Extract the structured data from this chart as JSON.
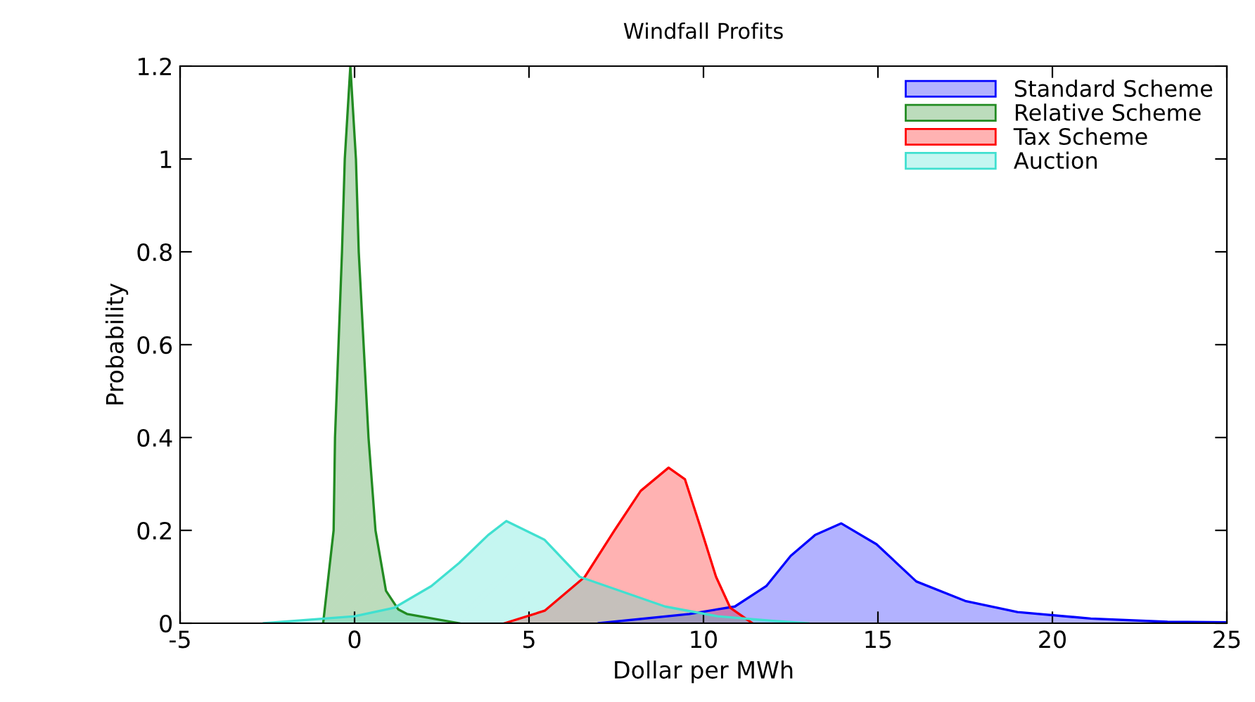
{
  "chart_data": {
    "type": "area",
    "title": "Windfall Profits",
    "xlabel": "Dollar per MWh",
    "ylabel": "Probability",
    "xlim": [
      -5,
      25
    ],
    "xticks": [
      -5,
      0,
      5,
      10,
      15,
      20,
      25
    ],
    "ylim": [
      0,
      1.2
    ],
    "yticks": [
      0,
      0.2,
      0.4,
      0.6,
      0.8,
      1,
      1.2
    ],
    "grid": false,
    "legend": "top right",
    "series": [
      {
        "name": "Standard Scheme",
        "color": "#0000ff",
        "x": [
          7.0,
          9.6,
          10.9,
          11.8,
          12.5,
          13.2,
          13.95,
          14.96,
          16.1,
          17.5,
          19.0,
          21.1,
          23.3,
          25
        ],
        "values": [
          0,
          0.02,
          0.036,
          0.08,
          0.145,
          0.19,
          0.215,
          0.17,
          0.09,
          0.048,
          0.024,
          0.01,
          0.003,
          0.002
        ]
      },
      {
        "name": "Relative Scheme",
        "color": "#228b22",
        "x": [
          -0.9,
          -0.6,
          -0.56,
          -0.36,
          -0.28,
          -0.12,
          0.04,
          0.12,
          0.4,
          0.6,
          0.9,
          1.25,
          1.5,
          3.0
        ],
        "values": [
          0,
          0.2,
          0.4,
          0.8,
          1.0,
          1.2,
          1.0,
          0.8,
          0.4,
          0.2,
          0.07,
          0.03,
          0.02,
          0
        ]
      },
      {
        "name": "Tax Scheme",
        "color": "#ff0000",
        "x": [
          4.3,
          5.45,
          6.6,
          7.45,
          8.2,
          9.0,
          9.47,
          9.9,
          10.36,
          10.77,
          11.4
        ],
        "values": [
          0,
          0.027,
          0.1,
          0.2,
          0.285,
          0.335,
          0.31,
          0.21,
          0.1,
          0.033,
          0
        ]
      },
      {
        "name": "Auction",
        "color": "#40e0d0",
        "x": [
          -2.6,
          0,
          1.13,
          2.2,
          3.0,
          3.83,
          4.35,
          5.44,
          6.45,
          8.9,
          10.4,
          12.0,
          13.0
        ],
        "values": [
          0,
          0.015,
          0.033,
          0.08,
          0.13,
          0.19,
          0.22,
          0.18,
          0.1,
          0.036,
          0.015,
          0.005,
          0
        ]
      }
    ]
  }
}
